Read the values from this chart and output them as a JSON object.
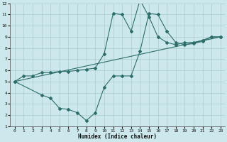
{
  "xlabel": "Humidex (Indice chaleur)",
  "background_color": "#cce8ec",
  "grid_color": "#aacccc",
  "line_color": "#2d6e6a",
  "xlim": [
    -0.5,
    23.5
  ],
  "ylim": [
    1,
    12
  ],
  "xticks": [
    0,
    1,
    2,
    3,
    4,
    5,
    6,
    7,
    8,
    9,
    10,
    11,
    12,
    13,
    14,
    15,
    16,
    17,
    18,
    19,
    20,
    21,
    22,
    23
  ],
  "yticks": [
    1,
    2,
    3,
    4,
    5,
    6,
    7,
    8,
    9,
    10,
    11,
    12
  ],
  "line1_x": [
    0,
    1,
    2,
    3,
    4,
    5,
    6,
    7,
    8,
    9,
    10,
    11,
    12,
    13,
    14,
    15,
    16,
    17,
    18,
    19,
    20,
    21,
    22,
    23
  ],
  "line1_y": [
    5.0,
    5.5,
    5.5,
    5.8,
    5.8,
    5.9,
    5.9,
    6.0,
    6.1,
    6.2,
    7.5,
    11.1,
    11.0,
    9.5,
    12.3,
    10.8,
    9.0,
    8.5,
    8.3,
    8.5,
    8.5,
    8.7,
    9.0,
    9.0
  ],
  "line2_x": [
    0,
    23
  ],
  "line2_y": [
    5.0,
    9.0
  ],
  "line3_x": [
    0,
    3,
    4,
    5,
    6,
    7,
    8,
    9,
    10,
    11,
    12,
    13,
    14,
    15,
    16,
    17,
    18,
    19,
    20,
    21,
    22,
    23
  ],
  "line3_y": [
    5.0,
    3.8,
    3.5,
    2.6,
    2.5,
    2.2,
    1.5,
    2.2,
    4.5,
    5.5,
    5.5,
    5.5,
    7.7,
    11.1,
    11.0,
    9.5,
    8.5,
    8.3,
    8.4,
    8.6,
    9.0,
    9.0
  ]
}
